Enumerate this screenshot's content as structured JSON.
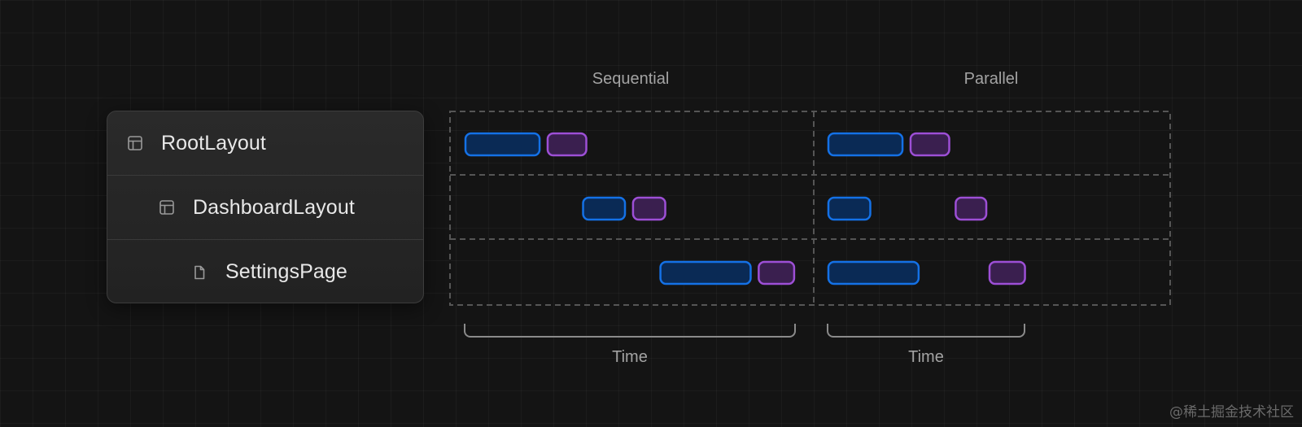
{
  "tree": {
    "items": [
      {
        "label": "RootLayout",
        "icon": "layout-icon"
      },
      {
        "label": "DashboardLayout",
        "icon": "layout-icon"
      },
      {
        "label": "SettingsPage",
        "icon": "file-icon"
      }
    ]
  },
  "columns": {
    "sequential": "Sequential",
    "parallel": "Parallel"
  },
  "time_labels": {
    "sequential": "Time",
    "parallel": "Time"
  },
  "colors": {
    "fetch_bar": "#1471e6",
    "fetch_fill": "#0a2a55",
    "render_bar": "#9d4fd6",
    "render_fill": "#3a1f4f",
    "dashed_border": "#555555"
  },
  "timeline": {
    "sequential": [
      {
        "row": "RootLayout",
        "fetch": [
          0,
          2.3
        ],
        "render": [
          2.55,
          3.75
        ]
      },
      {
        "row": "DashboardLayout",
        "fetch": [
          3.65,
          4.95
        ],
        "render": [
          5.2,
          6.2
        ]
      },
      {
        "row": "SettingsPage",
        "fetch": [
          6.05,
          8.85
        ],
        "render": [
          9.1,
          10.2
        ]
      }
    ],
    "parallel": [
      {
        "row": "RootLayout",
        "fetch": [
          0,
          2.3
        ],
        "render": [
          2.55,
          3.75
        ]
      },
      {
        "row": "DashboardLayout",
        "fetch": [
          0,
          1.3
        ],
        "render": [
          3.95,
          4.9
        ]
      },
      {
        "row": "SettingsPage",
        "fetch": [
          0,
          2.8
        ],
        "render": [
          5.0,
          6.1
        ]
      }
    ]
  },
  "watermark": "@稀土掘金技术社区"
}
